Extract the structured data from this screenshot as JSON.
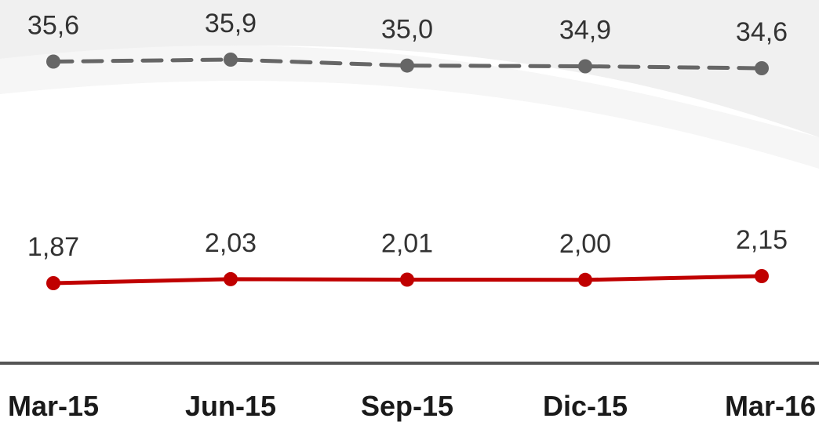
{
  "chart_data": {
    "type": "line",
    "categories": [
      "Mar-15",
      "Jun-15",
      "Sep-15",
      "Dic-15",
      "Mar-16"
    ],
    "series": [
      {
        "values": [
          35.6,
          35.9,
          35.0,
          34.9,
          34.6
        ],
        "labels": [
          "35,6",
          "35,9",
          "35,0",
          "34,9",
          "34,6"
        ],
        "color": "#666666",
        "line_style": "dashed"
      },
      {
        "values": [
          1.87,
          2.03,
          2.01,
          2.0,
          2.15
        ],
        "labels": [
          "1,87",
          "2,03",
          "2,01",
          "2,00",
          "2,15"
        ],
        "color": "#c00000",
        "line_style": "solid"
      }
    ],
    "axis_color": "#555555",
    "grid": false,
    "legend": "none"
  }
}
